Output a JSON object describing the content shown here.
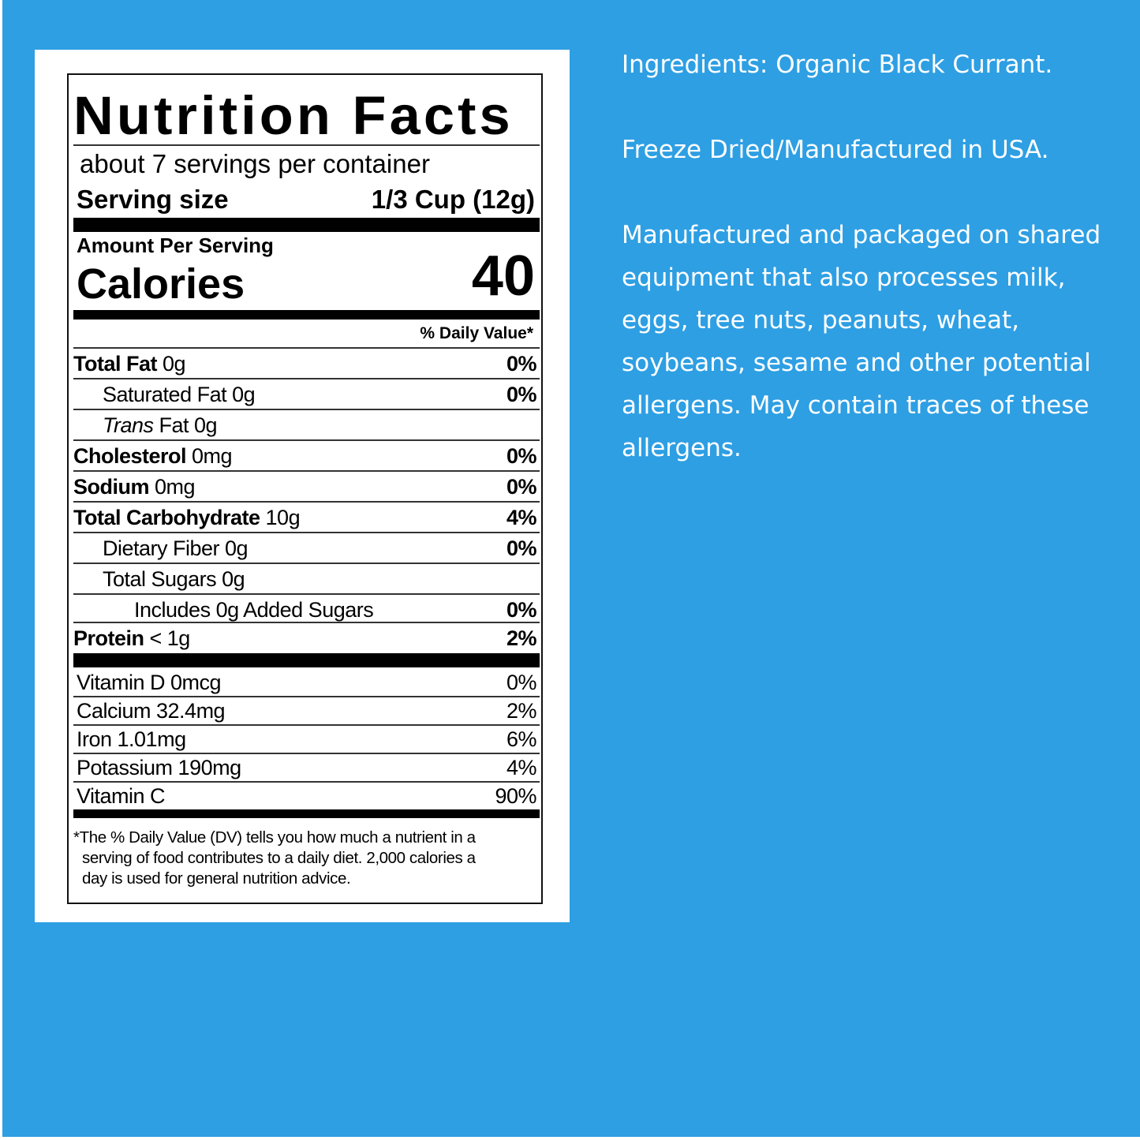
{
  "label": {
    "title": "Nutrition Facts",
    "servings": "about 7 servings per container",
    "serving_size_label": "Serving size",
    "serving_size_value": "1/3 Cup (12g)",
    "amount_per_serving": "Amount Per Serving",
    "calories_label": "Calories",
    "calories_value": "40",
    "dv_header": "% Daily Value*",
    "nutrients": [
      {
        "bold": "Total Fat",
        "rest": " 0g",
        "dv": "0%",
        "indent": 0
      },
      {
        "bold": "",
        "rest": "Saturated Fat 0g",
        "dv": "0%",
        "indent": 1
      },
      {
        "bold": "",
        "italic": "Trans",
        "rest": " Fat 0g",
        "dv": "",
        "indent": 1
      },
      {
        "bold": "Cholesterol",
        "rest": " 0mg",
        "dv": "0%",
        "indent": 0
      },
      {
        "bold": "Sodium",
        "rest": " 0mg",
        "dv": "0%",
        "indent": 0
      },
      {
        "bold": "Total Carbohydrate",
        "rest": " 10g",
        "dv": "4%",
        "indent": 0
      },
      {
        "bold": "",
        "rest": "Dietary Fiber 0g",
        "dv": "0%",
        "indent": 1
      },
      {
        "bold": "",
        "rest": "Total Sugars 0g",
        "dv": "",
        "indent": 1
      },
      {
        "bold": "",
        "rest": "Includes 0g Added Sugars",
        "dv": "0%",
        "indent": 2
      },
      {
        "bold": "Protein",
        "rest": " < 1g",
        "dv": "2%",
        "indent": 0
      }
    ],
    "vitamins": [
      {
        "name": "Vitamin D 0mcg",
        "dv": "0%"
      },
      {
        "name": "Calcium 32.4mg",
        "dv": "2%"
      },
      {
        "name": "Iron 1.01mg",
        "dv": "6%"
      },
      {
        "name": "Potassium 190mg",
        "dv": "4%"
      },
      {
        "name": "Vitamin C",
        "dv": "90%"
      }
    ],
    "footnote": [
      "*The % Daily Value (DV) tells you how much a nutrient in a",
      "serving of food contributes to a daily diet. 2,000 calories a",
      "day is used for general nutrition advice."
    ]
  },
  "info": {
    "ingredients": "Ingredients: Organic Black Currant.",
    "origin": "Freeze Dried/Manufactured in USA.",
    "allergen": "Manufactured and packaged on shared equipment that also processes milk, eggs, tree nuts, peanuts, wheat, soybeans, sesame and other potential allergens. May contain traces of these allergens."
  },
  "colors": {
    "background": "#2e9fe3",
    "label": "#ffffff",
    "text": "#000000"
  }
}
